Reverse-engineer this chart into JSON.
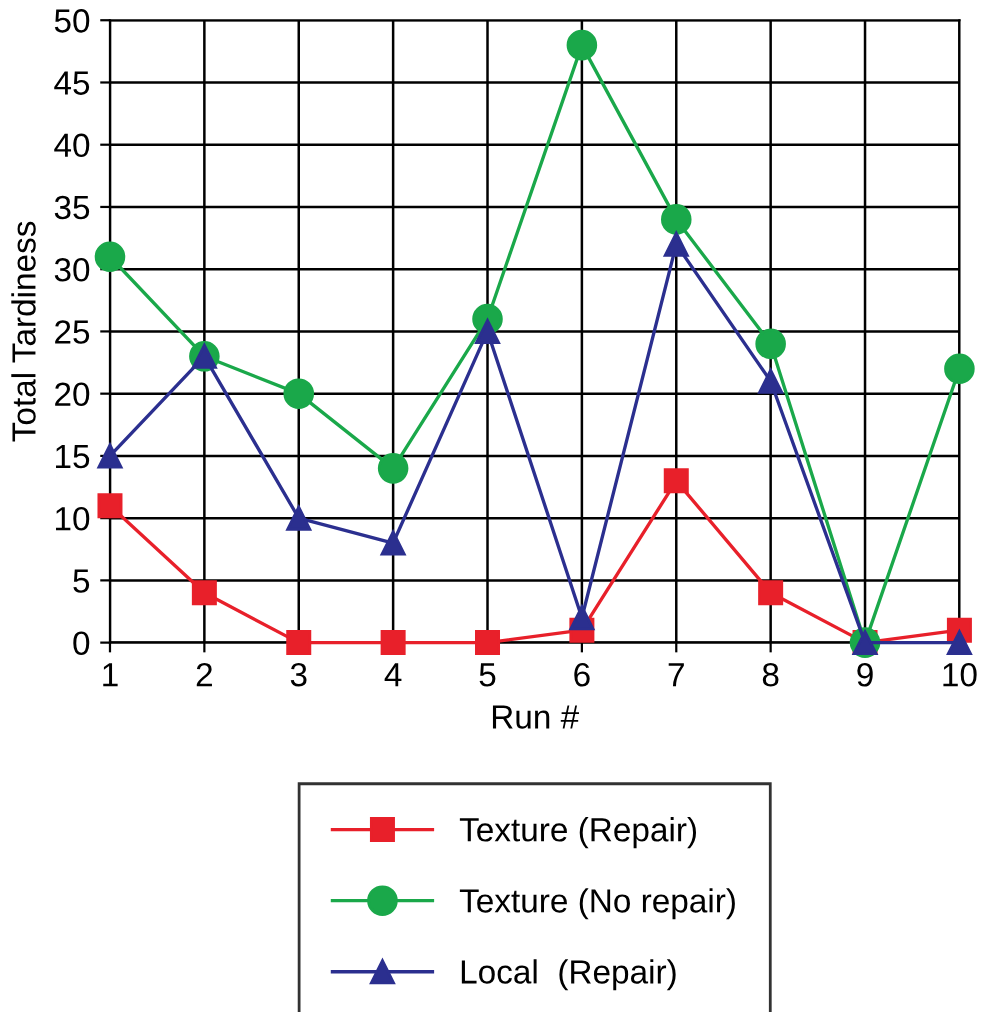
{
  "chart_data": {
    "type": "line",
    "xlabel": "Run #",
    "ylabel": "Total Tardiness",
    "x": [
      1,
      2,
      3,
      4,
      5,
      6,
      7,
      8,
      9,
      10
    ],
    "series": [
      {
        "name": "Texture (Repair)",
        "color": "#e8202a",
        "marker": "square",
        "values": [
          11,
          4,
          0,
          0,
          0,
          1,
          13,
          4,
          0,
          1
        ]
      },
      {
        "name": "Texture (No repair)",
        "color": "#1aa84a",
        "marker": "circle",
        "values": [
          31,
          23,
          20,
          14,
          26,
          48,
          34,
          24,
          0,
          22
        ]
      },
      {
        "name": "Local  (Repair)",
        "color": "#2b2f8f",
        "marker": "triangle",
        "values": [
          15,
          23,
          10,
          8,
          25,
          2,
          32,
          21,
          0,
          0
        ]
      }
    ],
    "xlim": [
      1,
      10
    ],
    "xticks": [
      1,
      2,
      3,
      4,
      5,
      6,
      7,
      8,
      9,
      10
    ],
    "ylim": [
      0,
      50
    ],
    "yticks": [
      0,
      5,
      10,
      15,
      20,
      25,
      30,
      35,
      40,
      45,
      50
    ],
    "grid": true,
    "legend": "bottom",
    "line_style": "solid"
  }
}
